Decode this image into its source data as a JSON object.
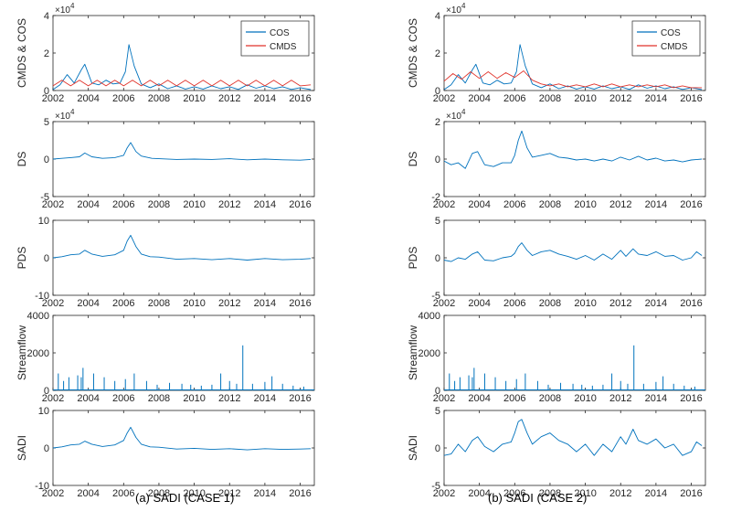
{
  "captions": [
    "(a) SADI (CASE 1)",
    "(b) SADI (CASE 2)"
  ],
  "colors": {
    "blue": "#0072BD",
    "red": "#E0332B",
    "axis": "#262626"
  },
  "x_ticks": [
    "2002",
    "2004",
    "2006",
    "2008",
    "2010",
    "2012",
    "2014",
    "2016"
  ],
  "chart_data": [
    {
      "id": "a1",
      "type": "line",
      "ylabel": "CMDS & COS",
      "multiplier": "×10",
      "exponent": "4",
      "xlim": [
        2002,
        2016.8
      ],
      "ylim": [
        0,
        40000
      ],
      "yticks": [
        0,
        20000,
        40000
      ],
      "ytick_labels": [
        "0",
        "2",
        "4"
      ],
      "legend_pos": "top-right",
      "series": [
        {
          "name": "COS",
          "color": "#0072BD",
          "x": [
            2002,
            2002.4,
            2002.8,
            2003.2,
            2003.6,
            2003.8,
            2004.2,
            2004.6,
            2005.0,
            2005.4,
            2005.8,
            2006.1,
            2006.3,
            2006.6,
            2007.0,
            2007.5,
            2008.0,
            2008.5,
            2009.0,
            2009.5,
            2010.0,
            2010.5,
            2011.0,
            2011.5,
            2012.0,
            2012.5,
            2013.0,
            2013.5,
            2014.0,
            2014.5,
            2015.0,
            2015.5,
            2016.0,
            2016.6
          ],
          "y": [
            500,
            3000,
            8500,
            4000,
            11000,
            14000,
            4000,
            3000,
            5500,
            3500,
            4000,
            10000,
            24500,
            13000,
            3500,
            1500,
            3500,
            1000,
            2500,
            800,
            2000,
            800,
            2500,
            1000,
            2000,
            600,
            3000,
            1200,
            2500,
            1000,
            2000,
            600,
            1500,
            500
          ]
        },
        {
          "name": "CMDS",
          "color": "#E0332B",
          "x": [
            2002,
            2002.5,
            2003.0,
            2003.5,
            2004.0,
            2004.5,
            2005.0,
            2005.5,
            2006.0,
            2006.5,
            2007.0,
            2007.5,
            2008.0,
            2008.5,
            2009.0,
            2009.5,
            2010.0,
            2010.5,
            2011.0,
            2011.5,
            2012.0,
            2012.5,
            2013.0,
            2013.5,
            2014.0,
            2014.5,
            2015.0,
            2015.5,
            2016.0,
            2016.6
          ],
          "y": [
            2500,
            5500,
            2500,
            5500,
            2500,
            5500,
            2500,
            5500,
            2500,
            5500,
            2500,
            5500,
            2500,
            5500,
            2500,
            5500,
            2500,
            5500,
            2500,
            5500,
            2500,
            5500,
            2500,
            5500,
            2500,
            5500,
            2500,
            5500,
            2500,
            3000
          ]
        }
      ]
    },
    {
      "id": "a2",
      "type": "line",
      "ylabel": "DS",
      "multiplier": "×10",
      "exponent": "4",
      "xlim": [
        2002,
        2016.8
      ],
      "ylim": [
        -50000,
        50000
      ],
      "yticks": [
        -50000,
        0,
        50000
      ],
      "ytick_labels": [
        "-5",
        "0",
        "5"
      ],
      "series": [
        {
          "color": "#0072BD",
          "x": [
            2002,
            2002.5,
            2003.0,
            2003.5,
            2003.8,
            2004.2,
            2004.8,
            2005.5,
            2006.0,
            2006.2,
            2006.4,
            2006.7,
            2007.0,
            2007.6,
            2008.0,
            2009.0,
            2010.0,
            2011.0,
            2012.0,
            2013.0,
            2014.0,
            2015.0,
            2016.0,
            2016.6
          ],
          "y": [
            0,
            1000,
            2000,
            3000,
            8000,
            3000,
            1000,
            2000,
            5000,
            15000,
            22000,
            10000,
            4000,
            1000,
            500,
            -500,
            0,
            -500,
            500,
            -1000,
            0,
            -1000,
            -1500,
            -500
          ]
        }
      ]
    },
    {
      "id": "a3",
      "type": "line",
      "ylabel": "PDS",
      "xlim": [
        2002,
        2016.8
      ],
      "ylim": [
        -10,
        10
      ],
      "yticks": [
        -10,
        0,
        10
      ],
      "ytick_labels": [
        "-10",
        "0",
        "10"
      ],
      "series": [
        {
          "color": "#0072BD",
          "x": [
            2002,
            2002.5,
            2003.0,
            2003.5,
            2003.8,
            2004.2,
            2004.8,
            2005.5,
            2006.0,
            2006.2,
            2006.4,
            2006.7,
            2007.0,
            2007.5,
            2008.0,
            2009.0,
            2010.0,
            2011.0,
            2012.0,
            2013.0,
            2014.0,
            2015.0,
            2016.0,
            2016.6
          ],
          "y": [
            0,
            0.3,
            0.8,
            1.0,
            2.0,
            1.0,
            0.4,
            0.8,
            2.0,
            4.5,
            6.0,
            3.0,
            1.0,
            0.3,
            0.2,
            -0.4,
            -0.2,
            -0.5,
            -0.2,
            -0.6,
            -0.2,
            -0.5,
            -0.4,
            -0.2
          ]
        }
      ]
    },
    {
      "id": "a4",
      "type": "bar",
      "ylabel": "Streamflow",
      "xlim": [
        2002,
        2016.8
      ],
      "ylim": [
        0,
        4000
      ],
      "yticks": [
        0,
        2000,
        4000
      ],
      "ytick_labels": [
        "0",
        "2000",
        "4000"
      ],
      "series": [
        {
          "color": "#0072BD",
          "x": [
            2002.3,
            2002.6,
            2002.9,
            2003.4,
            2003.6,
            2003.7,
            2004.3,
            2004.9,
            2005.5,
            2006.1,
            2006.6,
            2007.3,
            2007.9,
            2008.6,
            2009.3,
            2009.8,
            2010.4,
            2011.0,
            2011.5,
            2012.0,
            2012.4,
            2012.75,
            2013.3,
            2014.0,
            2014.4,
            2015.0,
            2015.6,
            2016.2
          ],
          "y": [
            900,
            500,
            700,
            800,
            700,
            1200,
            900,
            700,
            500,
            600,
            900,
            500,
            300,
            400,
            350,
            300,
            250,
            300,
            900,
            500,
            350,
            2400,
            350,
            450,
            750,
            350,
            250,
            200
          ]
        }
      ]
    },
    {
      "id": "a5",
      "type": "line",
      "ylabel": "SADI",
      "xlim": [
        2002,
        2016.8
      ],
      "ylim": [
        -10,
        10
      ],
      "yticks": [
        -10,
        0,
        10
      ],
      "ytick_labels": [
        "-10",
        "0",
        "10"
      ],
      "series": [
        {
          "color": "#0072BD",
          "x": [
            2002,
            2002.5,
            2003.0,
            2003.5,
            2003.8,
            2004.2,
            2004.8,
            2005.5,
            2006.0,
            2006.2,
            2006.4,
            2006.7,
            2007.0,
            2007.5,
            2008.0,
            2009.0,
            2010.0,
            2011.0,
            2012.0,
            2013.0,
            2014.0,
            2015.0,
            2016.0,
            2016.6
          ],
          "y": [
            0,
            0.3,
            0.8,
            1.0,
            1.8,
            1.0,
            0.4,
            0.8,
            2.0,
            4.0,
            5.5,
            2.8,
            1.0,
            0.3,
            0.2,
            -0.3,
            -0.1,
            -0.4,
            -0.2,
            -0.5,
            -0.2,
            -0.4,
            -0.3,
            -0.2
          ]
        }
      ]
    },
    {
      "id": "b1",
      "type": "line",
      "ylabel": "CMDS & COS",
      "multiplier": "×10",
      "exponent": "4",
      "xlim": [
        2002,
        2016.8
      ],
      "ylim": [
        0,
        40000
      ],
      "yticks": [
        0,
        20000,
        40000
      ],
      "ytick_labels": [
        "0",
        "2",
        "4"
      ],
      "legend_pos": "top-right",
      "series": [
        {
          "name": "COS",
          "color": "#0072BD",
          "x": [
            2002,
            2002.4,
            2002.8,
            2003.2,
            2003.6,
            2003.8,
            2004.2,
            2004.6,
            2005.0,
            2005.4,
            2005.8,
            2006.1,
            2006.3,
            2006.6,
            2007.0,
            2007.5,
            2008.0,
            2008.5,
            2009.0,
            2009.5,
            2010.0,
            2010.5,
            2011.0,
            2011.5,
            2012.0,
            2012.5,
            2013.0,
            2013.5,
            2014.0,
            2014.5,
            2015.0,
            2015.5,
            2016.0,
            2016.6
          ],
          "y": [
            500,
            3000,
            8500,
            4000,
            11000,
            14000,
            4000,
            3000,
            5500,
            3500,
            4000,
            10000,
            24500,
            13000,
            3500,
            1500,
            3500,
            1000,
            2500,
            800,
            2000,
            800,
            2500,
            1000,
            2000,
            600,
            3000,
            1200,
            2500,
            1000,
            2000,
            600,
            1500,
            500
          ]
        },
        {
          "name": "CMDS",
          "color": "#E0332B",
          "x": [
            2002,
            2002.5,
            2003.0,
            2003.5,
            2004.0,
            2004.5,
            2005.0,
            2005.5,
            2006.0,
            2006.5,
            2007.0,
            2007.5,
            2008.0,
            2008.5,
            2009.0,
            2009.5,
            2010.0,
            2010.5,
            2011.0,
            2011.5,
            2012.0,
            2012.5,
            2013.0,
            2013.5,
            2014.0,
            2014.5,
            2015.0,
            2015.5,
            2016.0,
            2016.6
          ],
          "y": [
            5000,
            9000,
            6000,
            10000,
            6500,
            10000,
            6500,
            9500,
            7000,
            10500,
            5500,
            3500,
            2500,
            3500,
            2000,
            3000,
            2000,
            3500,
            2000,
            3500,
            2000,
            3000,
            2000,
            3000,
            2000,
            3000,
            1500,
            2500,
            1500,
            1500
          ]
        }
      ]
    },
    {
      "id": "b2",
      "type": "line",
      "ylabel": "DS",
      "multiplier": "×10",
      "exponent": "4",
      "xlim": [
        2002,
        2016.8
      ],
      "ylim": [
        -20000,
        20000
      ],
      "yticks": [
        -20000,
        0,
        20000
      ],
      "ytick_labels": [
        "-2",
        "0",
        "2"
      ],
      "series": [
        {
          "color": "#0072BD",
          "x": [
            2002,
            2002.4,
            2002.8,
            2003.2,
            2003.6,
            2003.9,
            2004.3,
            2004.8,
            2005.3,
            2005.8,
            2006.0,
            2006.2,
            2006.4,
            2006.7,
            2007.0,
            2007.5,
            2008.0,
            2008.5,
            2009.0,
            2009.5,
            2010.0,
            2010.5,
            2011.0,
            2011.5,
            2012.0,
            2012.5,
            2013.0,
            2013.5,
            2014.0,
            2014.5,
            2015.0,
            2015.5,
            2016.0,
            2016.6
          ],
          "y": [
            -1000,
            -3000,
            -2000,
            -5000,
            3000,
            4000,
            -3000,
            -4000,
            -2000,
            -2000,
            2000,
            10000,
            15000,
            6000,
            1000,
            2000,
            3000,
            1000,
            500,
            -500,
            0,
            -1000,
            0,
            -1000,
            1000,
            -500,
            1500,
            -500,
            500,
            -1000,
            -500,
            -1500,
            -500,
            0
          ]
        }
      ]
    },
    {
      "id": "b3",
      "type": "line",
      "ylabel": "PDS",
      "xlim": [
        2002,
        2016.8
      ],
      "ylim": [
        -5,
        5
      ],
      "yticks": [
        -5,
        0,
        5
      ],
      "ytick_labels": [
        "-5",
        "0",
        "5"
      ],
      "series": [
        {
          "color": "#0072BD",
          "x": [
            2002,
            2002.4,
            2002.8,
            2003.2,
            2003.6,
            2003.9,
            2004.3,
            2004.8,
            2005.3,
            2005.8,
            2006.0,
            2006.2,
            2006.4,
            2006.7,
            2007.0,
            2007.5,
            2008.0,
            2008.5,
            2009.0,
            2009.5,
            2010.0,
            2010.5,
            2011.0,
            2011.5,
            2012.0,
            2012.3,
            2012.7,
            2013.0,
            2013.5,
            2014.0,
            2014.5,
            2015.0,
            2015.5,
            2016.0,
            2016.3,
            2016.6
          ],
          "y": [
            -0.3,
            -0.5,
            0,
            -0.2,
            0.5,
            0.8,
            -0.3,
            -0.4,
            0,
            0.2,
            0.6,
            1.5,
            2.0,
            1.0,
            0.3,
            0.8,
            1.0,
            0.5,
            0.2,
            -0.2,
            0.3,
            -0.3,
            0.5,
            -0.2,
            1.0,
            0.2,
            1.2,
            0.5,
            0.3,
            0.8,
            0.2,
            0.3,
            -0.3,
            0,
            0.8,
            0.3
          ]
        }
      ]
    },
    {
      "id": "b4",
      "type": "bar",
      "ylabel": "Streamflow",
      "xlim": [
        2002,
        2016.8
      ],
      "ylim": [
        0,
        4000
      ],
      "yticks": [
        0,
        2000,
        4000
      ],
      "ytick_labels": [
        "0",
        "2000",
        "4000"
      ],
      "series": [
        {
          "color": "#0072BD",
          "x": [
            2002.3,
            2002.6,
            2002.9,
            2003.4,
            2003.6,
            2003.7,
            2004.3,
            2004.9,
            2005.5,
            2006.1,
            2006.6,
            2007.3,
            2007.9,
            2008.6,
            2009.3,
            2009.8,
            2010.4,
            2011.0,
            2011.5,
            2012.0,
            2012.4,
            2012.75,
            2013.3,
            2014.0,
            2014.4,
            2015.0,
            2015.6,
            2016.2
          ],
          "y": [
            900,
            500,
            700,
            800,
            700,
            1200,
            900,
            700,
            500,
            600,
            900,
            500,
            300,
            400,
            350,
            300,
            250,
            300,
            900,
            500,
            350,
            2400,
            350,
            450,
            750,
            350,
            250,
            200
          ]
        }
      ]
    },
    {
      "id": "b5",
      "type": "line",
      "ylabel": "SADI",
      "xlim": [
        2002,
        2016.8
      ],
      "ylim": [
        -5,
        5
      ],
      "yticks": [
        -5,
        0,
        5
      ],
      "ytick_labels": [
        "-5",
        "0",
        "5"
      ],
      "series": [
        {
          "color": "#0072BD",
          "x": [
            2002,
            2002.4,
            2002.8,
            2003.2,
            2003.6,
            2003.9,
            2004.3,
            2004.8,
            2005.3,
            2005.8,
            2006.0,
            2006.2,
            2006.4,
            2006.7,
            2007.0,
            2007.5,
            2008.0,
            2008.5,
            2009.0,
            2009.5,
            2010.0,
            2010.5,
            2011.0,
            2011.5,
            2012.0,
            2012.3,
            2012.7,
            2013.0,
            2013.5,
            2014.0,
            2014.5,
            2015.0,
            2015.5,
            2016.0,
            2016.3,
            2016.6
          ],
          "y": [
            -1.0,
            -0.8,
            0.5,
            -0.5,
            1.0,
            1.5,
            0.2,
            -0.5,
            0.5,
            0.8,
            2.0,
            3.5,
            3.8,
            2.0,
            0.5,
            1.5,
            2.0,
            1.0,
            0.5,
            -0.5,
            0.5,
            -1.0,
            0.5,
            -0.5,
            1.5,
            0.5,
            2.5,
            1.0,
            0.5,
            1.2,
            0.0,
            0.5,
            -1.0,
            -0.5,
            0.8,
            0.3
          ]
        }
      ]
    }
  ]
}
